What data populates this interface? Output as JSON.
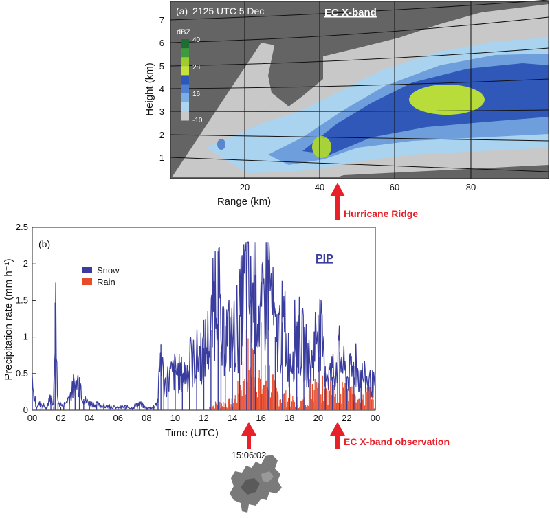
{
  "figure": {
    "panel_a": {
      "label": "(a)",
      "time_label": "2125 UTC 5 Dec",
      "instrument": "EC X-band",
      "ylabel": "Height (km)",
      "xlabel": "Range (km)",
      "y_ticks": [
        "1",
        "2",
        "3",
        "4",
        "5",
        "6",
        "7"
      ],
      "x_ticks": [
        "20",
        "40",
        "60",
        "80"
      ],
      "colorbar_title": "dBZ",
      "colorbar_ticks": [
        "40",
        "28",
        "16",
        "-10"
      ],
      "colorbar_colors": [
        "#1c6e33",
        "#3d9a3d",
        "#9ccc2e",
        "#c6e23a",
        "#2c56b8",
        "#4f7fd0",
        "#7aaee4",
        "#aed5ef",
        "#c9c9c9"
      ],
      "arrow_label": "Hurricane Ridge"
    },
    "panel_b": {
      "label": "(b)",
      "instrument": "PIP",
      "ylabel": "Precipitation rate (mm h⁻¹)",
      "xlabel": "Time (UTC)",
      "y_ticks": [
        "0",
        "0.5",
        "1",
        "1.5",
        "2",
        "2.5"
      ],
      "x_ticks": [
        "00",
        "02",
        "04",
        "06",
        "08",
        "10",
        "12",
        "14",
        "16",
        "18",
        "20",
        "22",
        "00"
      ],
      "legend": [
        {
          "label": "Snow",
          "color": "#3a3d9e"
        },
        {
          "label": "Rain",
          "color": "#e84b2a"
        }
      ],
      "arrow1_time": "15:06:02",
      "arrow2_label": "EC X-band observation"
    }
  },
  "chart_data": [
    {
      "type": "heatmap",
      "title": "2125 UTC 5 Dec",
      "xlabel": "Range (km)",
      "ylabel": "Height (km)",
      "xlim": [
        0,
        100
      ],
      "ylim": [
        0,
        7.5
      ],
      "colorbar": {
        "label": "dBZ",
        "ticks": [
          -10,
          16,
          28,
          40
        ]
      },
      "features": [
        {
          "name": "radar beam sector",
          "range_km": [
            0,
            100
          ],
          "height_km": [
            0,
            6.6
          ]
        },
        {
          "name": "reflectivity max",
          "range_km": [
            64,
            78
          ],
          "height_km": [
            3.0,
            4.3
          ],
          "dbz": 28
        },
        {
          "name": "reflectivity max",
          "range_km": [
            40,
            45
          ],
          "height_km": [
            1.2,
            1.9
          ],
          "dbz": 28
        }
      ],
      "annotation": {
        "text": "Hurricane Ridge",
        "range_km": 42
      }
    },
    {
      "type": "line",
      "xlabel": "Time (UTC)",
      "ylabel": "Precipitation rate (mm h⁻¹)",
      "xlim": [
        0,
        24
      ],
      "ylim": [
        0,
        2.5
      ],
      "series": [
        {
          "name": "Snow",
          "x": [
            0,
            0.3,
            0.6,
            1.0,
            1.3,
            1.5,
            1.6,
            1.8,
            2.2,
            2.6,
            3.0,
            3.3,
            3.6,
            4.0,
            4.5,
            5.0,
            5.5,
            6.0,
            6.5,
            7.0,
            7.5,
            8.0,
            8.5,
            8.8,
            9.0,
            9.2,
            9.5,
            10,
            10.5,
            11,
            11.5,
            12,
            12.5,
            13,
            13.2,
            13.5,
            14,
            14.5,
            15,
            15.3,
            15.6,
            16,
            16.5,
            17,
            17.5,
            18,
            18.5,
            19,
            19.5,
            20,
            20.5,
            21,
            21.5,
            22,
            22.5,
            23,
            23.5,
            24
          ],
          "y": [
            0.3,
            0.05,
            0.1,
            0.02,
            0.2,
            0.05,
            1.47,
            0.1,
            0.05,
            0.2,
            0.35,
            0.45,
            0.15,
            0.1,
            0.08,
            0.05,
            0.05,
            0.03,
            0.05,
            0.03,
            0.1,
            0.02,
            0.05,
            0.15,
            0.9,
            0.35,
            0.45,
            0.55,
            0.5,
            0.6,
            0.75,
            0.85,
            1.1,
            2.17,
            0.8,
            1.15,
            1.0,
            1.3,
            1.9,
            1.5,
            1.85,
            1.2,
            2.05,
            1.0,
            1.2,
            0.7,
            1.15,
            0.9,
            0.6,
            1.3,
            0.6,
            0.45,
            0.8,
            0.45,
            0.6,
            0.5,
            0.4,
            0.35
          ]
        },
        {
          "name": "Rain",
          "x": [
            12.5,
            13,
            14,
            14.5,
            15,
            15.3,
            15.6,
            16,
            16.5,
            17,
            18,
            19,
            20,
            20.5,
            21,
            22,
            22.5,
            23,
            23.5,
            24
          ],
          "y": [
            0.05,
            0.1,
            0.1,
            0.3,
            0.75,
            0.55,
            0.9,
            0.3,
            0.55,
            0.25,
            0.15,
            0.1,
            0.6,
            0.35,
            0.3,
            0.4,
            0.15,
            0.1,
            0.3,
            0.05
          ]
        }
      ],
      "annotations": [
        {
          "text": "15:06:02",
          "x": 15.1
        },
        {
          "text": "EC X-band observation",
          "x": 21.4
        }
      ]
    }
  ]
}
